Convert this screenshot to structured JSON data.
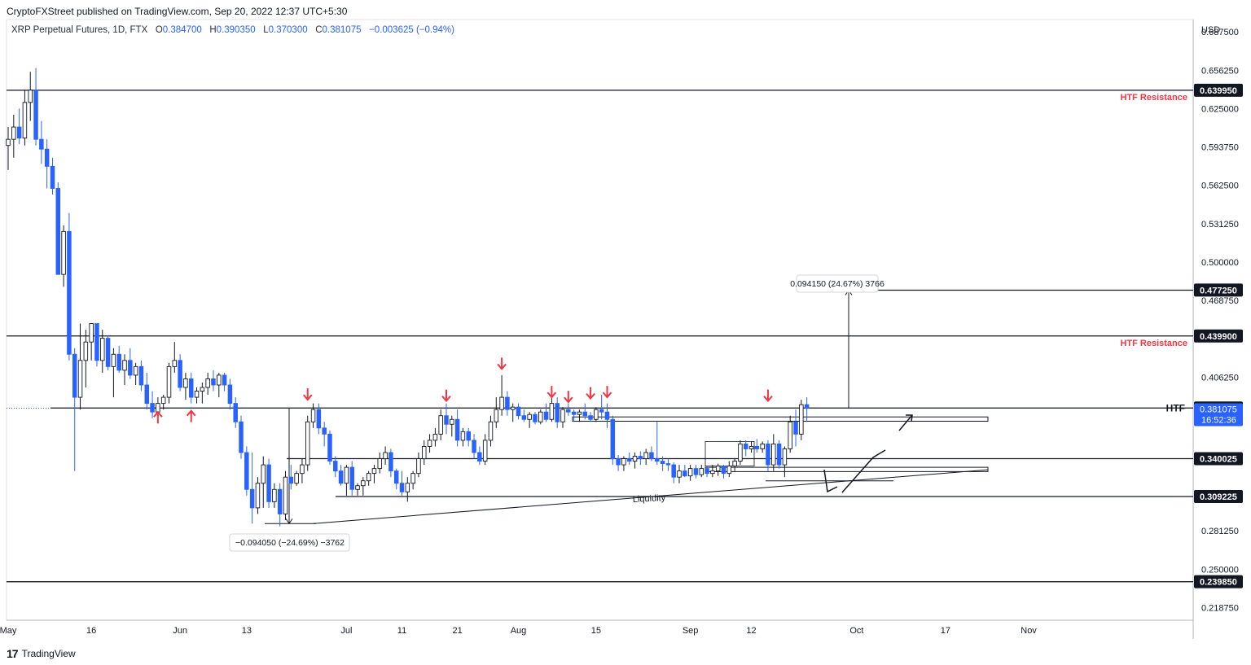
{
  "header": {
    "text": "CryptoFXStreet published on TradingView.com, Sep 20, 2022 12:37 UTC+5:30"
  },
  "symbol": {
    "name": "XRP Perpetual Futures, 1D, FTX",
    "open_label": "O",
    "open": "0.384700",
    "high_label": "H",
    "high": "0.390350",
    "low_label": "L",
    "low": "0.370300",
    "close_label": "C",
    "close": "0.381075",
    "change": "−0.003625 (−0.94%)"
  },
  "currency": "USD",
  "footer": {
    "logo": "17",
    "brand": "TradingView"
  },
  "colors": {
    "up": "#ffffff",
    "down": "#2962ff",
    "wick": "#131722",
    "arrow": "#f23645",
    "accent": "#2962ff",
    "level": "#131722"
  },
  "chart_data": {
    "type": "candlestick",
    "title": "XRP Perpetual Futures, 1D, FTX",
    "y_axis": {
      "currency": "USD",
      "range": [
        0.2085,
        0.6975
      ],
      "ticks": [
        "0.687500",
        "0.656250",
        "0.625000",
        "0.593750",
        "0.562500",
        "0.531250",
        "0.500000",
        "0.468750",
        "0.406250",
        "0.281250",
        "0.250000",
        "0.218750"
      ]
    },
    "x_axis": {
      "ticks": [
        {
          "label": "May",
          "idx": 0
        },
        {
          "label": "16",
          "idx": 15
        },
        {
          "label": "Jun",
          "idx": 31
        },
        {
          "label": "13",
          "idx": 43
        },
        {
          "label": "Jul",
          "idx": 61
        },
        {
          "label": "11",
          "idx": 71
        },
        {
          "label": "21",
          "idx": 81
        },
        {
          "label": "Aug",
          "idx": 92
        },
        {
          "label": "15",
          "idx": 106
        },
        {
          "label": "Sep",
          "idx": 123
        },
        {
          "label": "12",
          "idx": 134
        },
        {
          "label": "Oct",
          "idx": 153
        },
        {
          "label": "17",
          "idx": 169
        },
        {
          "label": "Nov",
          "idx": 184
        }
      ]
    },
    "price_labels": [
      {
        "value": 0.63995,
        "text": "0.639950"
      },
      {
        "value": 0.47725,
        "text": "0.477250"
      },
      {
        "value": 0.4399,
        "text": "0.439900"
      },
      {
        "value": 0.38125,
        "text": "0.381250"
      },
      {
        "value": 0.340025,
        "text": "0.340025"
      },
      {
        "value": 0.309225,
        "text": "0.309225"
      },
      {
        "value": 0.23985,
        "text": "0.239850"
      }
    ],
    "current_price": {
      "value": 0.381075,
      "text": "0.381075",
      "countdown": "16:52:36"
    },
    "horizontal_levels": [
      {
        "value": 0.63995,
        "label": "HTF Resistance"
      },
      {
        "value": 0.4399,
        "label": "HTF Resistance"
      },
      {
        "value": 0.38125,
        "label": "HTF"
      },
      {
        "value": 0.340025,
        "label": ""
      },
      {
        "value": 0.309225,
        "label": ""
      },
      {
        "value": 0.23985,
        "label": ""
      }
    ],
    "measurements": [
      {
        "text": "0.094150 (24.67%) 3766",
        "from": 0.38125,
        "to": 0.4772
      },
      {
        "text": "−0.094050 (−24.69%) −3762",
        "from": 0.38125,
        "to": 0.2872
      }
    ],
    "annotations": [
      {
        "text": "Liquidity"
      }
    ],
    "red_arrows": [
      {
        "idx": 27,
        "price": 0.378,
        "dir": "up"
      },
      {
        "idx": 33,
        "price": 0.379,
        "dir": "up"
      },
      {
        "idx": 54,
        "price": 0.388,
        "dir": "down"
      },
      {
        "idx": 79,
        "price": 0.387,
        "dir": "down"
      },
      {
        "idx": 89,
        "price": 0.413,
        "dir": "down"
      },
      {
        "idx": 98,
        "price": 0.39,
        "dir": "down"
      },
      {
        "idx": 101,
        "price": 0.386,
        "dir": "down"
      },
      {
        "idx": 105,
        "price": 0.389,
        "dir": "down"
      },
      {
        "idx": 108,
        "price": 0.39,
        "dir": "down"
      },
      {
        "idx": 137,
        "price": 0.387,
        "dir": "down"
      }
    ],
    "candles": [
      [
        0.595,
        0.61,
        0.575,
        0.6
      ],
      [
        0.6,
        0.62,
        0.585,
        0.61
      ],
      [
        0.61,
        0.625,
        0.596,
        0.601
      ],
      [
        0.601,
        0.64,
        0.595,
        0.63
      ],
      [
        0.63,
        0.655,
        0.615,
        0.64
      ],
      [
        0.64,
        0.658,
        0.595,
        0.6
      ],
      [
        0.6,
        0.615,
        0.58,
        0.592
      ],
      [
        0.592,
        0.6,
        0.56,
        0.578
      ],
      [
        0.578,
        0.585,
        0.555,
        0.56
      ],
      [
        0.56,
        0.565,
        0.49,
        0.49
      ],
      [
        0.49,
        0.53,
        0.48,
        0.525
      ],
      [
        0.525,
        0.54,
        0.42,
        0.425
      ],
      [
        0.425,
        0.43,
        0.33,
        0.39
      ],
      [
        0.39,
        0.45,
        0.38,
        0.42
      ],
      [
        0.42,
        0.445,
        0.398,
        0.435
      ],
      [
        0.435,
        0.45,
        0.42,
        0.45
      ],
      [
        0.45,
        0.45,
        0.415,
        0.42
      ],
      [
        0.42,
        0.445,
        0.41,
        0.438
      ],
      [
        0.438,
        0.44,
        0.412,
        0.415
      ],
      [
        0.415,
        0.43,
        0.39,
        0.425
      ],
      [
        0.425,
        0.432,
        0.41,
        0.412
      ],
      [
        0.412,
        0.425,
        0.4,
        0.42
      ],
      [
        0.42,
        0.43,
        0.405,
        0.408
      ],
      [
        0.408,
        0.418,
        0.4,
        0.415
      ],
      [
        0.415,
        0.42,
        0.395,
        0.4
      ],
      [
        0.4,
        0.41,
        0.38,
        0.385
      ],
      [
        0.385,
        0.395,
        0.373,
        0.378
      ],
      [
        0.378,
        0.39,
        0.375,
        0.385
      ],
      [
        0.385,
        0.392,
        0.38,
        0.39
      ],
      [
        0.39,
        0.418,
        0.385,
        0.415
      ],
      [
        0.415,
        0.435,
        0.41,
        0.42
      ],
      [
        0.42,
        0.425,
        0.395,
        0.398
      ],
      [
        0.398,
        0.41,
        0.388,
        0.405
      ],
      [
        0.405,
        0.41,
        0.385,
        0.39
      ],
      [
        0.39,
        0.398,
        0.385,
        0.395
      ],
      [
        0.395,
        0.402,
        0.385,
        0.398
      ],
      [
        0.398,
        0.41,
        0.392,
        0.405
      ],
      [
        0.405,
        0.412,
        0.395,
        0.4
      ],
      [
        0.4,
        0.41,
        0.39,
        0.408
      ],
      [
        0.408,
        0.41,
        0.395,
        0.4
      ],
      [
        0.4,
        0.405,
        0.38,
        0.385
      ],
      [
        0.385,
        0.39,
        0.365,
        0.37
      ],
      [
        0.37,
        0.375,
        0.34,
        0.345
      ],
      [
        0.345,
        0.35,
        0.31,
        0.315
      ],
      [
        0.315,
        0.345,
        0.2872,
        0.3
      ],
      [
        0.3,
        0.325,
        0.295,
        0.32
      ],
      [
        0.32,
        0.342,
        0.3,
        0.335
      ],
      [
        0.335,
        0.34,
        0.3,
        0.305
      ],
      [
        0.305,
        0.32,
        0.3,
        0.315
      ],
      [
        0.315,
        0.32,
        0.285,
        0.295
      ],
      [
        0.295,
        0.33,
        0.29,
        0.325
      ],
      [
        0.325,
        0.335,
        0.315,
        0.32
      ],
      [
        0.32,
        0.33,
        0.318,
        0.328
      ],
      [
        0.328,
        0.34,
        0.32,
        0.335
      ],
      [
        0.335,
        0.375,
        0.33,
        0.37
      ],
      [
        0.37,
        0.385,
        0.365,
        0.38
      ],
      [
        0.38,
        0.385,
        0.36,
        0.365
      ],
      [
        0.365,
        0.37,
        0.35,
        0.36
      ],
      [
        0.36,
        0.363,
        0.335,
        0.338
      ],
      [
        0.338,
        0.342,
        0.325,
        0.33
      ],
      [
        0.33,
        0.335,
        0.318,
        0.32
      ],
      [
        0.32,
        0.335,
        0.31,
        0.333
      ],
      [
        0.333,
        0.338,
        0.31,
        0.315
      ],
      [
        0.315,
        0.32,
        0.31,
        0.318
      ],
      [
        0.318,
        0.325,
        0.31,
        0.322
      ],
      [
        0.322,
        0.33,
        0.318,
        0.328
      ],
      [
        0.328,
        0.335,
        0.32,
        0.332
      ],
      [
        0.332,
        0.345,
        0.328,
        0.34
      ],
      [
        0.34,
        0.35,
        0.335,
        0.345
      ],
      [
        0.345,
        0.348,
        0.325,
        0.33
      ],
      [
        0.33,
        0.332,
        0.315,
        0.32
      ],
      [
        0.32,
        0.33,
        0.31,
        0.313
      ],
      [
        0.313,
        0.325,
        0.305,
        0.32
      ],
      [
        0.32,
        0.33,
        0.315,
        0.328
      ],
      [
        0.328,
        0.345,
        0.325,
        0.34
      ],
      [
        0.34,
        0.355,
        0.335,
        0.35
      ],
      [
        0.35,
        0.36,
        0.345,
        0.355
      ],
      [
        0.355,
        0.365,
        0.35,
        0.36
      ],
      [
        0.36,
        0.38,
        0.355,
        0.375
      ],
      [
        0.375,
        0.385,
        0.36,
        0.368
      ],
      [
        0.368,
        0.375,
        0.358,
        0.372
      ],
      [
        0.372,
        0.38,
        0.35,
        0.355
      ],
      [
        0.355,
        0.365,
        0.35,
        0.362
      ],
      [
        0.362,
        0.365,
        0.35,
        0.355
      ],
      [
        0.355,
        0.36,
        0.34,
        0.345
      ],
      [
        0.345,
        0.35,
        0.335,
        0.338
      ],
      [
        0.338,
        0.36,
        0.335,
        0.355
      ],
      [
        0.355,
        0.375,
        0.35,
        0.37
      ],
      [
        0.37,
        0.39,
        0.365,
        0.38
      ],
      [
        0.38,
        0.408,
        0.375,
        0.39
      ],
      [
        0.39,
        0.395,
        0.375,
        0.38
      ],
      [
        0.38,
        0.385,
        0.37,
        0.382
      ],
      [
        0.382,
        0.385,
        0.372,
        0.375
      ],
      [
        0.375,
        0.38,
        0.37,
        0.372
      ],
      [
        0.372,
        0.378,
        0.365,
        0.376
      ],
      [
        0.376,
        0.378,
        0.368,
        0.37
      ],
      [
        0.37,
        0.38,
        0.368,
        0.378
      ],
      [
        0.378,
        0.385,
        0.37,
        0.372
      ],
      [
        0.372,
        0.39,
        0.37,
        0.385
      ],
      [
        0.385,
        0.39,
        0.365,
        0.37
      ],
      [
        0.37,
        0.382,
        0.365,
        0.38
      ],
      [
        0.38,
        0.385,
        0.375,
        0.378
      ],
      [
        0.378,
        0.38,
        0.37,
        0.376
      ],
      [
        0.376,
        0.38,
        0.37,
        0.378
      ],
      [
        0.378,
        0.385,
        0.372,
        0.375
      ],
      [
        0.375,
        0.378,
        0.37,
        0.372
      ],
      [
        0.372,
        0.382,
        0.37,
        0.38
      ],
      [
        0.38,
        0.392,
        0.372,
        0.378
      ],
      [
        0.378,
        0.385,
        0.365,
        0.372
      ],
      [
        0.372,
        0.375,
        0.335,
        0.34
      ],
      [
        0.34,
        0.343,
        0.33,
        0.335
      ],
      [
        0.335,
        0.342,
        0.33,
        0.34
      ],
      [
        0.34,
        0.345,
        0.335,
        0.338
      ],
      [
        0.338,
        0.345,
        0.332,
        0.342
      ],
      [
        0.342,
        0.346,
        0.335,
        0.34
      ],
      [
        0.34,
        0.348,
        0.335,
        0.345
      ],
      [
        0.345,
        0.35,
        0.338,
        0.34
      ],
      [
        0.34,
        0.37,
        0.335,
        0.338
      ],
      [
        0.338,
        0.342,
        0.33,
        0.336
      ],
      [
        0.336,
        0.34,
        0.33,
        0.335
      ],
      [
        0.335,
        0.337,
        0.32,
        0.325
      ],
      [
        0.325,
        0.335,
        0.32,
        0.33
      ],
      [
        0.33,
        0.335,
        0.325,
        0.326
      ],
      [
        0.326,
        0.335,
        0.322,
        0.332
      ],
      [
        0.332,
        0.335,
        0.324,
        0.327
      ],
      [
        0.327,
        0.335,
        0.325,
        0.332
      ],
      [
        0.332,
        0.334,
        0.325,
        0.328
      ],
      [
        0.328,
        0.335,
        0.325,
        0.33
      ],
      [
        0.33,
        0.336,
        0.326,
        0.334
      ],
      [
        0.334,
        0.335,
        0.324,
        0.328
      ],
      [
        0.328,
        0.338,
        0.325,
        0.334
      ],
      [
        0.334,
        0.34,
        0.33,
        0.338
      ],
      [
        0.338,
        0.355,
        0.335,
        0.352
      ],
      [
        0.352,
        0.355,
        0.342,
        0.348
      ],
      [
        0.348,
        0.354,
        0.345,
        0.35
      ],
      [
        0.35,
        0.356,
        0.345,
        0.348
      ],
      [
        0.348,
        0.354,
        0.345,
        0.352
      ],
      [
        0.352,
        0.355,
        0.33,
        0.335
      ],
      [
        0.335,
        0.36,
        0.33,
        0.352
      ],
      [
        0.352,
        0.355,
        0.332,
        0.335
      ],
      [
        0.335,
        0.35,
        0.325,
        0.348
      ],
      [
        0.348,
        0.375,
        0.345,
        0.37
      ],
      [
        0.37,
        0.38,
        0.35,
        0.36
      ],
      [
        0.36,
        0.388,
        0.355,
        0.384
      ],
      [
        0.384,
        0.39,
        0.37,
        0.381
      ]
    ]
  }
}
